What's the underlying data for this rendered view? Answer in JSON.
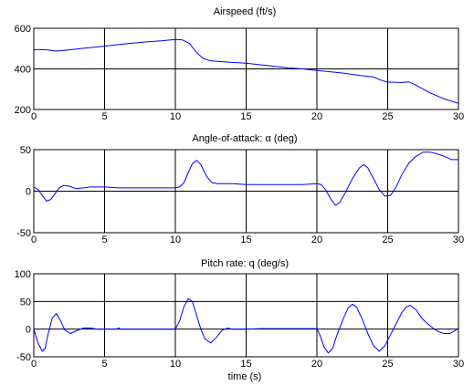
{
  "chart_data": [
    {
      "type": "line",
      "title": "Airspeed (ft/s)",
      "xlabel": "",
      "ylabel": "",
      "xlim": [
        0,
        30
      ],
      "ylim": [
        200,
        600
      ],
      "xticks": [
        0,
        5,
        10,
        15,
        20,
        25,
        30
      ],
      "yticks": [
        200,
        400,
        600
      ],
      "grid": true,
      "series": [
        {
          "color": "#0000ff",
          "x": [
            0,
            0.5,
            1,
            1.5,
            2,
            3,
            4,
            5,
            6,
            7,
            8,
            9,
            10,
            10.5,
            11,
            11.5,
            12,
            12.5,
            13,
            14,
            15,
            16,
            17,
            18,
            19,
            20,
            21,
            22,
            23,
            24,
            24.5,
            25,
            26,
            26.5,
            27,
            28,
            29,
            30
          ],
          "y": [
            495,
            495,
            493,
            488,
            490,
            498,
            505,
            512,
            520,
            527,
            533,
            538,
            545,
            543,
            525,
            480,
            450,
            440,
            437,
            432,
            428,
            420,
            413,
            405,
            400,
            392,
            385,
            378,
            368,
            360,
            345,
            335,
            333,
            336,
            320,
            282,
            252,
            230
          ]
        }
      ]
    },
    {
      "type": "line",
      "title": "Angle-of-attack: α (deg)",
      "xlabel": "",
      "ylabel": "",
      "xlim": [
        0,
        30
      ],
      "ylim": [
        -50,
        50
      ],
      "xticks": [
        0,
        5,
        10,
        15,
        20,
        25,
        30
      ],
      "yticks": [
        -50,
        0,
        50
      ],
      "grid": true,
      "series": [
        {
          "color": "#0000ff",
          "x": [
            0,
            0.3,
            0.6,
            0.9,
            1.2,
            1.5,
            1.8,
            2.1,
            2.5,
            3,
            3.5,
            4,
            5,
            6,
            7,
            8,
            9,
            10,
            10.3,
            10.6,
            10.9,
            11.2,
            11.5,
            11.8,
            12.2,
            12.6,
            13,
            14,
            15,
            16,
            17,
            18,
            19,
            20,
            20.3,
            20.6,
            21,
            21.3,
            21.6,
            22,
            22.5,
            23,
            23.3,
            23.6,
            24,
            24.4,
            24.8,
            25.2,
            25.6,
            26,
            26.5,
            27,
            27.5,
            28,
            28.5,
            29,
            29.5,
            30
          ],
          "y": [
            5,
            2,
            -5,
            -12,
            -10,
            -3,
            4,
            7,
            6,
            3,
            4,
            5,
            5,
            4,
            4,
            4,
            4,
            4,
            5,
            10,
            22,
            33,
            37,
            32,
            18,
            10,
            9,
            9,
            8,
            8,
            8,
            8,
            8,
            9,
            8,
            2,
            -10,
            -17,
            -14,
            -2,
            15,
            28,
            32,
            28,
            15,
            2,
            -6,
            -5,
            5,
            20,
            34,
            42,
            47,
            47,
            45,
            42,
            38,
            38
          ]
        }
      ]
    },
    {
      "type": "line",
      "title": "Pitch rate: q (deg/s)",
      "xlabel": "time (s)",
      "ylabel": "",
      "xlim": [
        0,
        30
      ],
      "ylim": [
        -50,
        100
      ],
      "xticks": [
        0,
        5,
        10,
        15,
        20,
        25,
        30
      ],
      "yticks": [
        -50,
        0,
        50,
        100
      ],
      "grid": true,
      "series": [
        {
          "color": "#0000ff",
          "x": [
            0,
            0.3,
            0.6,
            0.8,
            1,
            1.3,
            1.6,
            1.9,
            2.2,
            2.6,
            3,
            3.5,
            4,
            4.5,
            5,
            5.8,
            6,
            6.1,
            6.5,
            7,
            8,
            9,
            10,
            10.3,
            10.6,
            10.9,
            11.2,
            11.5,
            11.8,
            12.1,
            12.5,
            12.9,
            13.3,
            13.7,
            14,
            15,
            16,
            17,
            18,
            19,
            20,
            20.2,
            20.5,
            20.8,
            21.1,
            21.4,
            21.8,
            22.2,
            22.5,
            22.8,
            23.2,
            23.6,
            24,
            24.4,
            24.8,
            25.2,
            25.6,
            26,
            26.3,
            26.6,
            27,
            27.4,
            27.8,
            28.2,
            28.6,
            29,
            29.4,
            29.8,
            30
          ],
          "y": [
            0,
            -25,
            -40,
            -35,
            -10,
            20,
            28,
            15,
            -2,
            -8,
            -3,
            2,
            2,
            0,
            0,
            0,
            2,
            0,
            0,
            0,
            0,
            0,
            0,
            15,
            40,
            55,
            50,
            25,
            0,
            -18,
            -25,
            -15,
            -2,
            2,
            0,
            0,
            1,
            1,
            1,
            1,
            1,
            -10,
            -32,
            -43,
            -35,
            -12,
            15,
            38,
            45,
            40,
            18,
            -8,
            -30,
            -40,
            -30,
            -10,
            10,
            30,
            40,
            43,
            35,
            20,
            10,
            2,
            -5,
            -8,
            -8,
            -2,
            2
          ]
        }
      ]
    }
  ]
}
